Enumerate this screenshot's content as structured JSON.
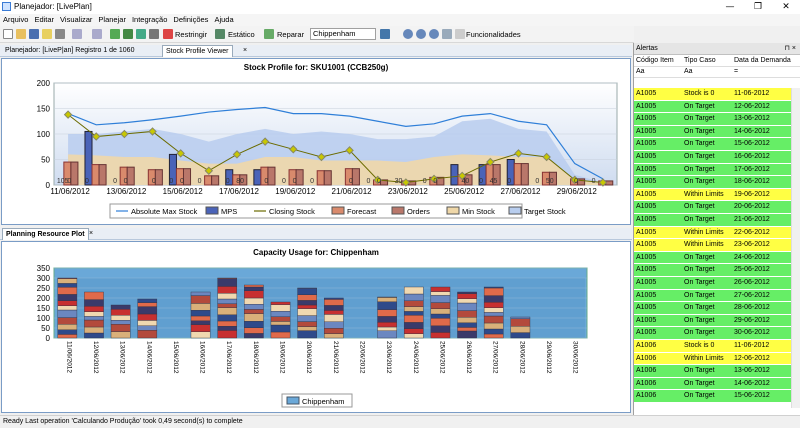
{
  "window": {
    "title": "Planejador: [LivePlan]",
    "minimize": "—",
    "maximize": "❐",
    "close": "✕"
  },
  "menu": [
    "Arquivo",
    "Editar",
    "Visualizar",
    "Planejar",
    "Integração",
    "Definições",
    "Ajuda"
  ],
  "toolbar": {
    "restringir": "Restringir",
    "estatico": "Estático",
    "reparar": "Reparar",
    "site": "Chippenham",
    "funcionalidades": "Funcionalidades"
  },
  "tabs_top": {
    "tab1": "Planejador: [LiveP|an] Registro 1 de 1060",
    "tab2": "Stock Profile Viewer",
    "close": "×"
  },
  "tabs_bottom": {
    "tab1": "Planning Resource Plot",
    "close": "×"
  },
  "chart_top": {
    "title": "Stock Profile for: SKU1001 (CCB250g)"
  },
  "chart_bottom": {
    "title": "Capacity Usage for: Chippenham"
  },
  "colors": {
    "mps": "#4a63b8",
    "forecast": "#d98a6c",
    "orders": "#b9776a",
    "minstock": "#efd7a8",
    "target": "#b8cdee",
    "maxstock": "#2f7fd8",
    "closing": "#c8c800",
    "capacity": "#6aa8d8"
  },
  "chart_data": [
    {
      "type": "bar",
      "title": "Stock Profile for: SKU1001 (CCB250g)",
      "ylim": [
        0,
        200
      ],
      "yticks": [
        0,
        50,
        100,
        150,
        200
      ],
      "xtick_labels": [
        "11/06/2012",
        "13/06/2012",
        "15/06/2012",
        "17/06/2012",
        "19/06/2012",
        "21/06/2012",
        "23/06/2012",
        "25/06/2012",
        "27/06/2012",
        "29/06/2012"
      ],
      "categories": [
        "11/06",
        "12/06",
        "13/06",
        "14/06",
        "15/06",
        "16/06",
        "17/06",
        "18/06",
        "19/06",
        "20/06",
        "21/06",
        "22/06",
        "23/06",
        "24/06",
        "25/06",
        "26/06",
        "27/06",
        "28/06",
        "29/06",
        "30/06"
      ],
      "series": [
        {
          "name": "Absolute Max Stock",
          "kind": "line",
          "values": [
            140,
            118,
            122,
            128,
            135,
            143,
            148,
            152,
            140,
            140,
            135,
            125,
            115,
            120,
            135,
            140,
            125,
            118,
            42,
            12
          ]
        },
        {
          "name": "MPS",
          "kind": "bar",
          "values": [
            0,
            105,
            0,
            0,
            60,
            0,
            30,
            30,
            0,
            0,
            0,
            0,
            0,
            0,
            40,
            40,
            50,
            0,
            0,
            0
          ]
        },
        {
          "name": "Closing Stock",
          "kind": "line",
          "values": [
            138,
            95,
            100,
            105,
            62,
            28,
            60,
            85,
            70,
            55,
            68,
            10,
            5,
            12,
            18,
            45,
            62,
            55,
            10,
            5
          ]
        },
        {
          "name": "Forecast",
          "kind": "bar",
          "values": [
            45,
            40,
            35,
            30,
            32,
            18,
            20,
            35,
            30,
            28,
            32,
            10,
            8,
            15,
            20,
            40,
            42,
            25,
            12,
            8
          ]
        },
        {
          "name": "Orders",
          "kind": "bar",
          "values": [
            45,
            40,
            35,
            30,
            32,
            18,
            20,
            35,
            30,
            28,
            32,
            10,
            8,
            15,
            20,
            40,
            42,
            25,
            12,
            8
          ]
        },
        {
          "name": "Min Stock",
          "kind": "area",
          "values": [
            60,
            58,
            55,
            55,
            48,
            42,
            42,
            55,
            55,
            48,
            48,
            48,
            45,
            55,
            60,
            58,
            55,
            55,
            10,
            5
          ]
        },
        {
          "name": "Target Stock",
          "kind": "area",
          "values": [
            100,
            100,
            105,
            110,
            100,
            85,
            100,
            110,
            100,
            105,
            100,
            90,
            90,
            95,
            125,
            130,
            110,
            105,
            20,
            5
          ]
        }
      ],
      "data_labels": [
        "105",
        "0",
        "0",
        "0",
        "0",
        "0",
        "0",
        "0",
        "0",
        "80",
        "0",
        "0",
        "0",
        "0",
        "0",
        "0",
        "0",
        "0",
        "30",
        "0",
        "0",
        "40",
        "0",
        "45",
        "0",
        "50",
        "0",
        "0",
        "0"
      ]
    },
    {
      "type": "bar",
      "title": "Capacity Usage for: Chippenham",
      "ylim": [
        0,
        350
      ],
      "yticks": [
        0,
        50,
        100,
        150,
        200,
        250,
        300,
        350
      ],
      "categories": [
        "11/06/2012",
        "12/06/2012",
        "13/06/2012",
        "14/06/2012",
        "15/06/2012",
        "16/06/2012",
        "17/06/2012",
        "18/06/2012",
        "19/06/2012",
        "20/06/2012",
        "21/06/2012",
        "22/06/2012",
        "23/06/2012",
        "24/06/2012",
        "25/06/2012",
        "26/06/2012",
        "27/06/2012",
        "28/06/2012",
        "29/06/2012",
        "30/06/2012"
      ],
      "series": [
        {
          "name": "Chippenham",
          "values": [
            300,
            230,
            165,
            195,
            0,
            230,
            300,
            265,
            180,
            250,
            200,
            0,
            205,
            255,
            255,
            230,
            255,
            105,
            0,
            0
          ]
        }
      ]
    }
  ],
  "alerts": {
    "title": "Alertas",
    "columns": [
      "Código Item",
      "Tipo Caso",
      "Data da Demanda"
    ],
    "filters": [
      "Aa",
      "Aa",
      "="
    ],
    "rows": [
      [
        "A1005",
        "Stock is 0",
        "11-06-2012",
        "yellow"
      ],
      [
        "A1005",
        "On Target",
        "12-06-2012",
        "green"
      ],
      [
        "A1005",
        "On Target",
        "13-06-2012",
        "green"
      ],
      [
        "A1005",
        "On Target",
        "14-06-2012",
        "green"
      ],
      [
        "A1005",
        "On Target",
        "15-06-2012",
        "green"
      ],
      [
        "A1005",
        "On Target",
        "16-06-2012",
        "green"
      ],
      [
        "A1005",
        "On Target",
        "17-06-2012",
        "green"
      ],
      [
        "A1005",
        "On Target",
        "18-06-2012",
        "green"
      ],
      [
        "A1005",
        "Within Limits",
        "19-06-2012",
        "yellow"
      ],
      [
        "A1005",
        "On Target",
        "20-06-2012",
        "green"
      ],
      [
        "A1005",
        "On Target",
        "21-06-2012",
        "green"
      ],
      [
        "A1005",
        "Within Limits",
        "22-06-2012",
        "yellow"
      ],
      [
        "A1005",
        "Within Limits",
        "23-06-2012",
        "yellow"
      ],
      [
        "A1005",
        "On Target",
        "24-06-2012",
        "green"
      ],
      [
        "A1005",
        "On Target",
        "25-06-2012",
        "green"
      ],
      [
        "A1005",
        "On Target",
        "26-06-2012",
        "green"
      ],
      [
        "A1005",
        "On Target",
        "27-06-2012",
        "green"
      ],
      [
        "A1005",
        "On Target",
        "28-06-2012",
        "green"
      ],
      [
        "A1005",
        "On Target",
        "29-06-2012",
        "green"
      ],
      [
        "A1005",
        "On Target",
        "30-06-2012",
        "green"
      ],
      [
        "A1006",
        "Stock is 0",
        "11-06-2012",
        "yellow"
      ],
      [
        "A1006",
        "Within Limits",
        "12-06-2012",
        "yellow"
      ],
      [
        "A1006",
        "On Target",
        "13-06-2012",
        "green"
      ],
      [
        "A1006",
        "On Target",
        "14-06-2012",
        "green"
      ],
      [
        "A1006",
        "On Target",
        "15-06-2012",
        "green"
      ]
    ]
  },
  "status": "Ready  Last operation 'Calculando Produção' took 0,49 second(s) to complete"
}
